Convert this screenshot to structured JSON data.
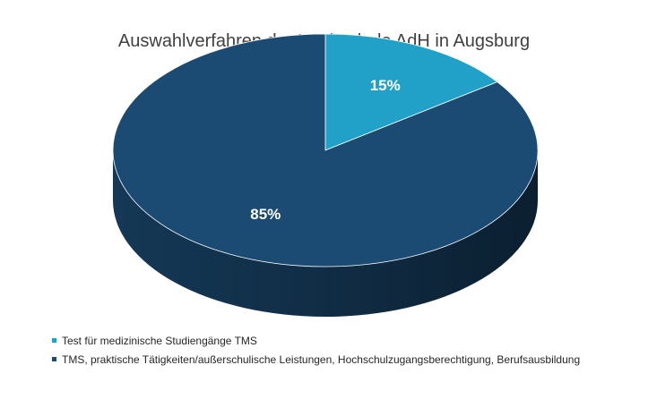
{
  "chart_data": {
    "type": "pie",
    "title": "Auswahlverfahren der Hochschule AdH in Augsburg",
    "legend_position": "bottom-left",
    "slices": [
      {
        "label": "Test für medizinische Studiengänge TMS",
        "value": 15,
        "display": "15%",
        "color": "#21a0c8"
      },
      {
        "label": "TMS, praktische Tätigkeiten/außerschulische Leistungen, Hochschulzugangsberechtigung, Berufsausbildung",
        "value": 85,
        "display": "85%",
        "color": "#1b4a72"
      }
    ]
  }
}
